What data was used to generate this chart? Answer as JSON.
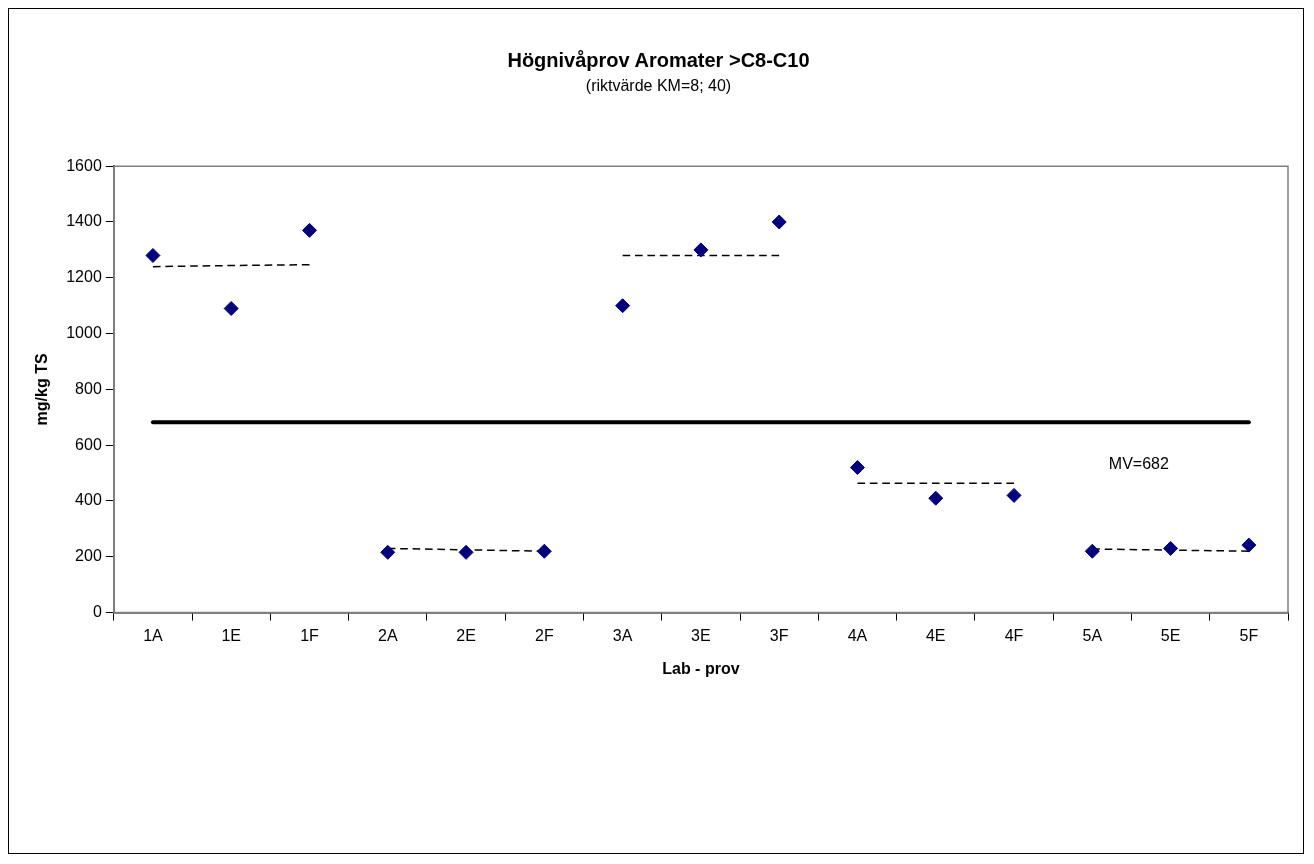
{
  "chart_data": {
    "type": "scatter",
    "title": "Högnivåprov Aromater >C8-C10",
    "subtitle": "(riktvärde KM=8; 40)",
    "xlabel": "Lab - prov",
    "ylabel": "mg/kg TS",
    "categories": [
      "1A",
      "1E",
      "1F",
      "2A",
      "2E",
      "2F",
      "3A",
      "3E",
      "3F",
      "4A",
      "4E",
      "4F",
      "5A",
      "5E",
      "5F"
    ],
    "ylim": [
      0,
      1600
    ],
    "yticks": [
      0,
      200,
      400,
      600,
      800,
      1000,
      1200,
      1400,
      1600
    ],
    "grid": false,
    "legend": false,
    "marker": "diamond",
    "series": [
      {
        "color": "#000080",
        "values": [
          1280,
          1090,
          1370,
          216,
          216,
          220,
          1100,
          1300,
          1400,
          520,
          410,
          420,
          220,
          230,
          242
        ]
      },
      {
        "type": "line",
        "color": "#000000",
        "line_style": "dashed",
        "marker": "none",
        "values": [
          1240,
          1244,
          1247,
          null,
          null,
          null,
          null,
          null,
          null,
          null,
          null,
          null,
          null,
          null,
          null
        ]
      },
      {
        "type": "line",
        "color": "#000000",
        "line_style": "dashed",
        "marker": "none",
        "values": [
          null,
          null,
          null,
          230,
          225,
          220,
          null,
          null,
          null,
          null,
          null,
          null,
          null,
          null,
          null
        ]
      },
      {
        "type": "line",
        "color": "#000000",
        "line_style": "dashed",
        "marker": "none",
        "values": [
          null,
          null,
          null,
          null,
          null,
          null,
          1280,
          1280,
          1280,
          null,
          null,
          null,
          null,
          null,
          null
        ]
      },
      {
        "type": "line",
        "color": "#000000",
        "line_style": "dashed",
        "marker": "none",
        "values": [
          null,
          null,
          null,
          null,
          null,
          null,
          null,
          null,
          null,
          464,
          464,
          464,
          null,
          null,
          null
        ]
      },
      {
        "type": "line",
        "color": "#000000",
        "line_style": "dashed",
        "marker": "none",
        "values": [
          null,
          null,
          null,
          null,
          null,
          null,
          null,
          null,
          null,
          null,
          null,
          null,
          228,
          224,
          220
        ]
      }
    ],
    "ref_lines": [
      {
        "axis": "y",
        "value": 682,
        "label": "MV=682",
        "color": "#000000"
      }
    ]
  }
}
